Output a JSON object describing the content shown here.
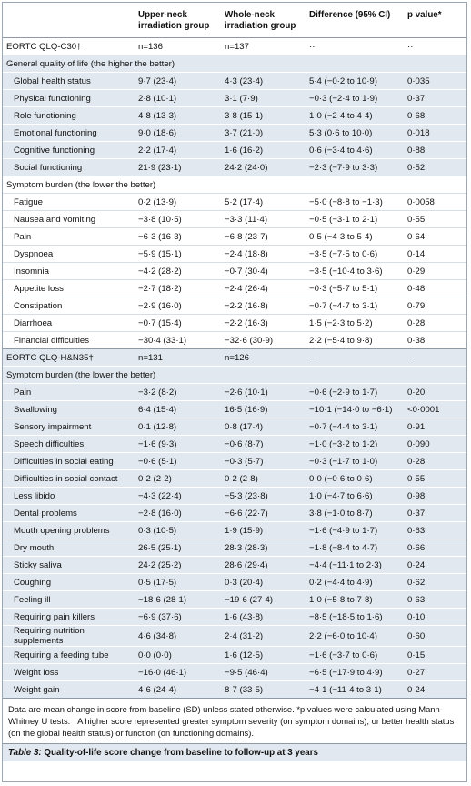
{
  "table": {
    "header": [
      "",
      "Upper-neck irradiation group",
      "Whole-neck irradiation group",
      "Difference (95% CI)",
      "p value*"
    ],
    "sections": [
      {
        "row": [
          "EORTC QLQ-C30†",
          "n=136",
          "n=137",
          "··",
          "··"
        ],
        "groups": [
          {
            "title": "General quality of life (the higher the better)",
            "rows": [
              [
                "Global health status",
                "9·7 (23·4)",
                "4·3 (23·4)",
                "5·4 (−0·2 to 10·9)",
                "0·035"
              ],
              [
                "Physical functioning",
                "2·8 (10·1)",
                "3·1 (7·9)",
                "−0·3 (−2·4 to 1·9)",
                "0·37"
              ],
              [
                "Role functioning",
                "4·8 (13·3)",
                "3·8 (15·1)",
                "1·0 (−2·4 to 4·4)",
                "0·68"
              ],
              [
                "Emotional functioning",
                "9·0 (18·6)",
                "3·7 (21·0)",
                "5·3 (0·6 to 10·0)",
                "0·018"
              ],
              [
                "Cognitive functioning",
                "2·2 (17·4)",
                "1·6 (16·2)",
                "0·6 (−3·4 to 4·6)",
                "0·88"
              ],
              [
                "Social functioning",
                "21·9 (23·1)",
                "24·2 (24·0)",
                "−2·3 (−7·9 to 3·3)",
                "0·52"
              ]
            ]
          },
          {
            "title": "Symptom burden (the lower the better)",
            "rows": [
              [
                "Fatigue",
                "0·2 (13·9)",
                "5·2 (17·4)",
                "−5·0 (−8·8 to −1·3)",
                "0·0058"
              ],
              [
                "Nausea and vomiting",
                "−3·8 (10·5)",
                "−3·3 (11·4)",
                "−0·5 (−3·1 to 2·1)",
                "0·55"
              ],
              [
                "Pain",
                "−6·3 (16·3)",
                "−6·8 (23·7)",
                "0·5 (−4·3 to 5·4)",
                "0·64"
              ],
              [
                "Dyspnoea",
                "−5·9 (15·1)",
                "−2·4 (18·8)",
                "−3·5 (−7·5 to 0·6)",
                "0·14"
              ],
              [
                "Insomnia",
                "−4·2 (28·2)",
                "−0·7 (30·4)",
                "−3·5 (−10·4 to 3·6)",
                "0·29"
              ],
              [
                "Appetite loss",
                "−2·7 (18·2)",
                "−2·4 (26·4)",
                "−0·3 (−5·7 to 5·1)",
                "0·48"
              ],
              [
                "Constipation",
                "−2·9 (16·0)",
                "−2·2 (16·8)",
                "−0·7 (−4·7 to 3·1)",
                "0·79"
              ],
              [
                "Diarrhoea",
                "−0·7 (15·4)",
                "−2·2 (16·3)",
                "1·5 (−2·3 to 5·2)",
                "0·28"
              ],
              [
                "Financial difficulties",
                "−30·4 (33·1)",
                "−32·6 (30·9)",
                "2·2 (−5·4 to 9·8)",
                "0·38"
              ]
            ]
          }
        ]
      },
      {
        "row": [
          "EORTC QLQ-H&N35†",
          "n=131",
          "n=126",
          "··",
          "··"
        ],
        "groups": [
          {
            "title": "Symptom burden (the lower the better)",
            "rows": [
              [
                "Pain",
                "−3·2 (8·2)",
                "−2·6 (10·1)",
                "−0·6 (−2·9 to 1·7)",
                "0·20"
              ],
              [
                "Swallowing",
                "6·4 (15·4)",
                "16·5 (16·9)",
                "−10·1 (−14·0 to −6·1)",
                "<0·0001"
              ],
              [
                "Sensory impairment",
                "0·1 (12·8)",
                "0·8 (17·4)",
                "−0·7 (−4·4 to 3·1)",
                "0·91"
              ],
              [
                "Speech difficulties",
                "−1·6 (9·3)",
                "−0·6 (8·7)",
                "−1·0 (−3·2 to 1·2)",
                "0·090"
              ],
              [
                "Difficulties in social eating",
                "−0·6 (5·1)",
                "−0·3 (5·7)",
                "−0·3 (−1·7 to 1·0)",
                "0·28"
              ],
              [
                "Difficulties in social contact",
                "0·2 (2·2)",
                "0·2 (2·8)",
                "0·0 (−0·6 to 0·6)",
                "0·55"
              ],
              [
                "Less libido",
                "−4·3 (22·4)",
                "−5·3 (23·8)",
                "1·0 (−4·7 to 6·6)",
                "0·98"
              ],
              [
                "Dental problems",
                "−2·8 (16·0)",
                "−6·6 (22·7)",
                "3·8 (−1·0 to 8·7)",
                "0·37"
              ],
              [
                "Mouth opening problems",
                "0·3 (10·5)",
                "1·9 (15·9)",
                "−1·6 (−4·9 to 1·7)",
                "0·63"
              ],
              [
                "Dry mouth",
                "26·5 (25·1)",
                "28·3 (28·3)",
                "−1·8 (−8·4 to 4·7)",
                "0·66"
              ],
              [
                "Sticky saliva",
                "24·2 (25·2)",
                "28·6 (29·4)",
                "−4·4 (−11·1 to 2·3)",
                "0·24"
              ],
              [
                "Coughing",
                "0·5 (17·5)",
                "0·3 (20·4)",
                "0·2 (−4·4 to 4·9)",
                "0·62"
              ],
              [
                "Feeling ill",
                "−18·6 (28·1)",
                "−19·6 (27·4)",
                "1·0 (−5·8 to 7·8)",
                "0·63"
              ],
              [
                "Requiring pain killers",
                "−6·9 (37·6)",
                "1·6 (43·8)",
                "−8·5 (−18·5 to 1·6)",
                "0·10"
              ],
              [
                "Requiring nutrition supplements",
                "4·6 (34·8)",
                "2·4 (31·2)",
                "2·2 (−6·0 to 10·4)",
                "0·60"
              ],
              [
                "Requiring a feeding tube",
                "0·0 (0·0)",
                "1·6 (12·5)",
                "−1·6 (−3·7 to 0·6)",
                "0·15"
              ],
              [
                "Weight loss",
                "−16·0 (46·1)",
                "−9·5 (46·4)",
                "−6·5 (−17·9 to 4·9)",
                "0·27"
              ],
              [
                "Weight gain",
                "4·6 (24·4)",
                "8·7 (33·5)",
                "−4·1 (−11·4 to 3·1)",
                "0·24"
              ]
            ]
          }
        ]
      }
    ],
    "footnote": "Data are mean change in score from baseline (SD) unless stated otherwise. *p values were calculated using Mann-Whitney U tests. †A higher score represented greater symptom severity (on symptom domains), or better health status (on the global health status) or function (on functioning domains).",
    "caption": {
      "label": "Table 3:",
      "text": "Quality-of-life score change from baseline to follow-up at 3 years"
    }
  }
}
